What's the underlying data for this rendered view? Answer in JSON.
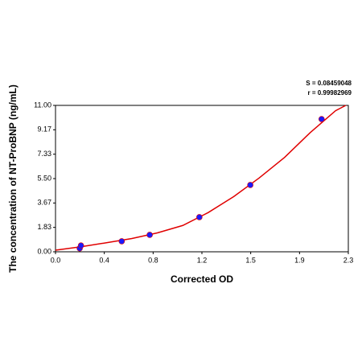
{
  "chart_data": {
    "type": "scatter",
    "xlabel": "Corrected OD",
    "ylabel": "The concentration of NT-ProBNP (ng/mL)",
    "annotations": [
      "S = 0.08459048",
      "r = 0.99982969"
    ],
    "xlim": [
      0,
      2.3
    ],
    "xticks": [
      {
        "value": 0,
        "label": "0.0"
      },
      {
        "value": 0.3833,
        "label": "0.4"
      },
      {
        "value": 0.7667,
        "label": "0.8"
      },
      {
        "value": 1.15,
        "label": "1.2"
      },
      {
        "value": 1.5333,
        "label": "1.5"
      },
      {
        "value": 1.9167,
        "label": "1.9"
      },
      {
        "value": 2.3,
        "label": "2.3"
      }
    ],
    "ylim": [
      0,
      11
    ],
    "yticks": [
      {
        "value": 0,
        "label": "0.00"
      },
      {
        "value": 1.8333,
        "label": "1.83"
      },
      {
        "value": 3.6667,
        "label": "3.67"
      },
      {
        "value": 5.5,
        "label": "5.50"
      },
      {
        "value": 7.3333,
        "label": "7.33"
      },
      {
        "value": 9.1667,
        "label": "9.17"
      },
      {
        "value": 11,
        "label": "11.00"
      }
    ],
    "series": [
      {
        "color": "#1a1aff",
        "x": [
          0.19,
          0.2,
          0.52,
          0.74,
          1.13,
          1.53,
          2.09
        ],
        "values": [
          0.26,
          0.47,
          0.79,
          1.27,
          2.6,
          5.02,
          9.97
        ]
      }
    ],
    "curve": {
      "color": "#e00000",
      "x": [
        0,
        0.2,
        0.4,
        0.6,
        0.8,
        1.0,
        1.2,
        1.4,
        1.6,
        1.8,
        2.0,
        2.2,
        2.28
      ],
      "values": [
        0.12,
        0.38,
        0.68,
        1.0,
        1.42,
        1.98,
        2.95,
        4.15,
        5.55,
        7.1,
        8.95,
        10.6,
        11.0
      ]
    }
  }
}
